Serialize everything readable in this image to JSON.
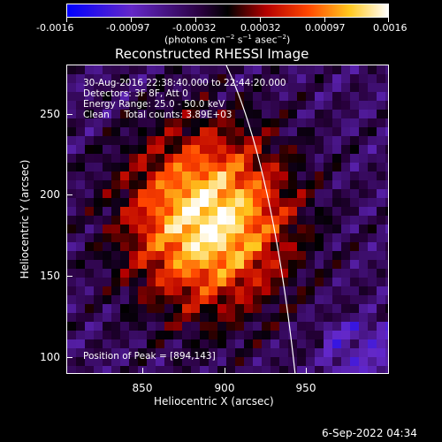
{
  "colorbar": {
    "ticks": [
      "-0.0016",
      "-0.00097",
      "-0.00032",
      "0.00032",
      "0.00097",
      "0.0016"
    ],
    "units_prefix": "(photons cm",
    "units_exp1": "−2",
    "units_mid": " s",
    "units_exp2": "−1",
    "units_suffix": " asec",
    "units_exp3": "−2",
    "units_close": ")"
  },
  "title": "Reconstructed RHESSI Image",
  "info": {
    "time": "30-Aug-2016 22:38:40.000 to 22:44:20.000",
    "detectors": "Detectors: 3F 8F, Att 0",
    "energy": "Energy Range: 25.0 - 50.0 keV",
    "method": "Clean     Total counts: 3.89E+03",
    "peak": "Position of Peak = [894,143]"
  },
  "axes": {
    "xlabel": "Heliocentric X (arcsec)",
    "ylabel": "Heliocentric Y (arcsec)",
    "xticks": [
      "850",
      "900",
      "950"
    ],
    "yticks": [
      "100",
      "150",
      "200",
      "250"
    ]
  },
  "timestamp": "6-Sep-2022 04:34",
  "colors": {
    "background": "#000000",
    "axis": "#ffffff",
    "limb": "#ffffff"
  }
}
